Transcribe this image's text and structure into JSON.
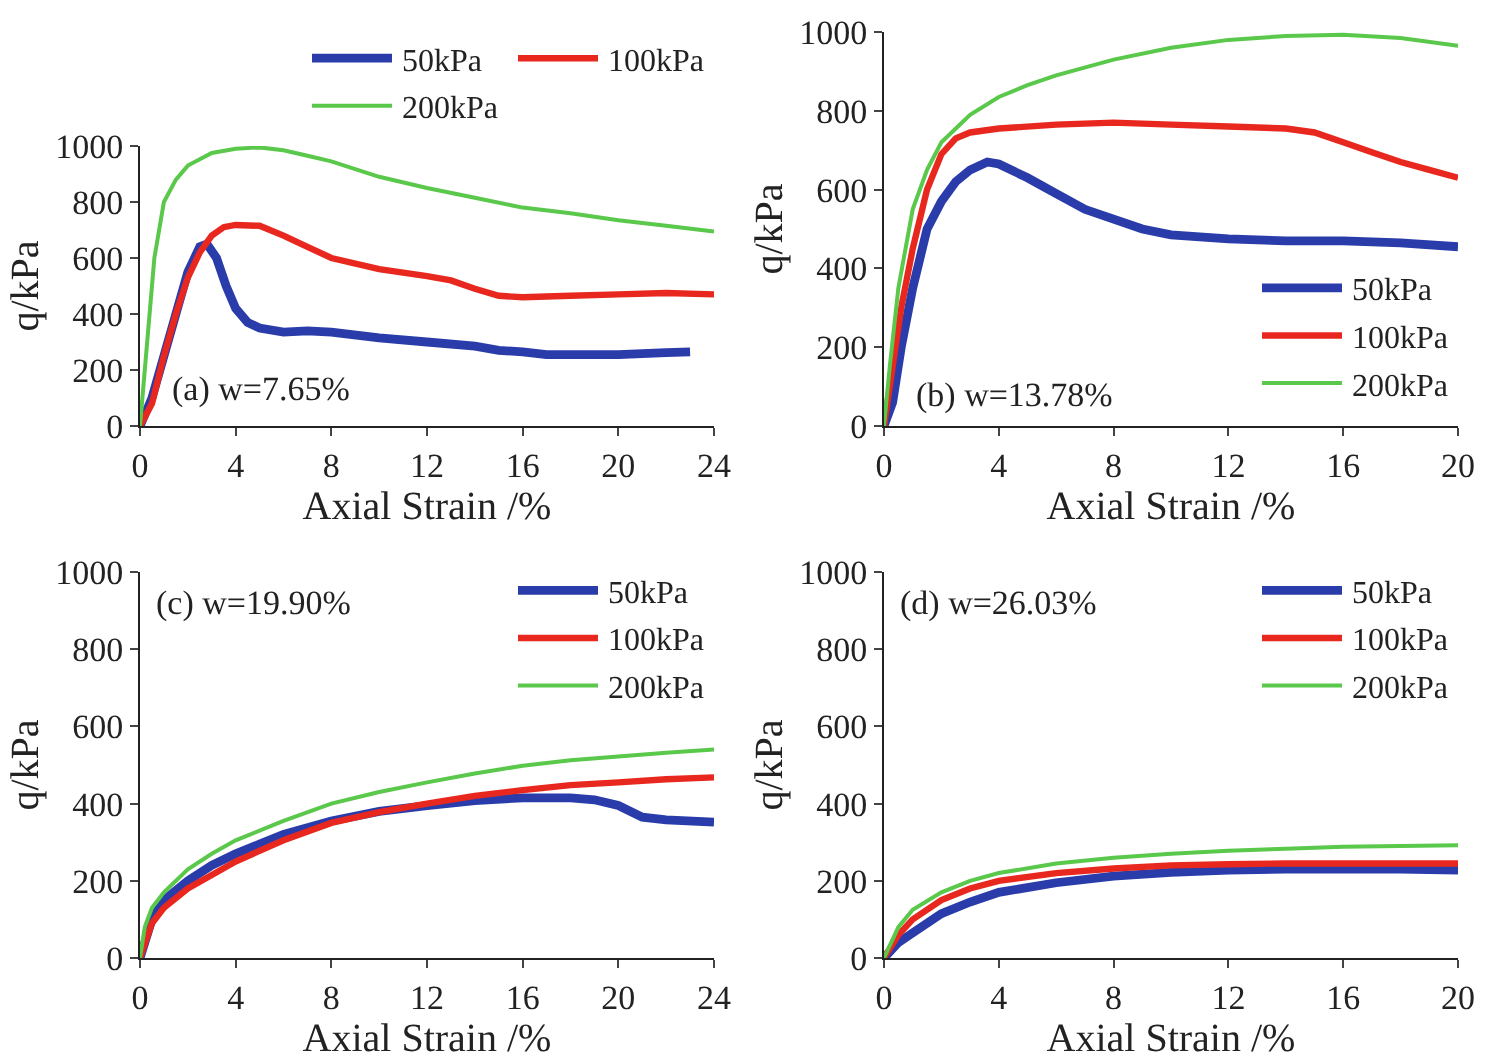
{
  "chart_data": [
    {
      "type": "line",
      "xlabel": "Axial Strain /%",
      "ylabel": "q/kPa",
      "annotations": [
        "(a) w=7.65%"
      ],
      "xlim": [
        0,
        24
      ],
      "xticks": [
        0,
        4,
        8,
        12,
        16,
        20,
        24
      ],
      "ylim": [
        0,
        1000
      ],
      "yticks": [
        0,
        200,
        400,
        600,
        800,
        1000
      ],
      "grid": false,
      "legend": "top",
      "series": [
        {
          "name": "50kPa",
          "color": "#2a3caa",
          "x": [
            0,
            0.5,
            1,
            1.5,
            2,
            2.5,
            2.8,
            3.2,
            3.6,
            4,
            4.5,
            5,
            6,
            7,
            8,
            10,
            12,
            14,
            15,
            16,
            17,
            18,
            20,
            22,
            23
          ],
          "values": [
            0,
            100,
            250,
            400,
            550,
            640,
            650,
            600,
            500,
            420,
            370,
            350,
            335,
            340,
            335,
            315,
            300,
            285,
            270,
            265,
            255,
            255,
            255,
            262,
            265
          ]
        },
        {
          "name": "100kPa",
          "color": "#e8281e",
          "x": [
            0,
            0.5,
            1,
            1.5,
            2,
            2.5,
            3,
            3.5,
            4,
            5,
            6,
            7,
            8,
            10,
            12,
            13,
            14,
            15,
            16,
            18,
            20,
            22,
            24
          ],
          "values": [
            0,
            80,
            250,
            400,
            530,
            620,
            680,
            710,
            718,
            715,
            680,
            640,
            600,
            560,
            535,
            520,
            490,
            465,
            460,
            465,
            470,
            475,
            470
          ]
        },
        {
          "name": "200kPa",
          "color": "#5ac84a",
          "x": [
            0,
            0.3,
            0.6,
            1,
            1.5,
            2,
            3,
            4,
            5,
            6,
            7,
            8,
            10,
            12,
            14,
            16,
            18,
            20,
            22,
            24
          ],
          "values": [
            0,
            300,
            600,
            800,
            880,
            930,
            975,
            990,
            995,
            985,
            965,
            945,
            890,
            850,
            815,
            780,
            760,
            735,
            715,
            695
          ]
        }
      ]
    },
    {
      "type": "line",
      "xlabel": "Axial Strain /%",
      "ylabel": "q/kPa",
      "annotations": [
        "(b) w=13.78%"
      ],
      "xlim": [
        0,
        20
      ],
      "xticks": [
        0,
        4,
        8,
        12,
        16,
        20
      ],
      "ylim": [
        0,
        1000
      ],
      "yticks": [
        0,
        200,
        400,
        600,
        800,
        1000
      ],
      "grid": false,
      "legend": "bottom right",
      "series": [
        {
          "name": "50kPa",
          "color": "#2a3caa",
          "x": [
            0,
            0.3,
            0.6,
            1,
            1.5,
            2,
            2.5,
            3,
            3.6,
            4,
            5,
            6,
            7,
            8,
            9,
            10,
            12,
            14,
            16,
            18,
            20
          ],
          "values": [
            0,
            60,
            200,
            350,
            500,
            570,
            620,
            650,
            670,
            665,
            630,
            590,
            550,
            525,
            500,
            485,
            475,
            470,
            470,
            465,
            455
          ]
        },
        {
          "name": "100kPa",
          "color": "#e8281e",
          "x": [
            0,
            0.3,
            0.6,
            1,
            1.5,
            2,
            2.5,
            3,
            4,
            6,
            8,
            10,
            12,
            14,
            15,
            16,
            17,
            18,
            19,
            20
          ],
          "values": [
            0,
            150,
            300,
            450,
            600,
            690,
            730,
            745,
            755,
            765,
            770,
            765,
            760,
            755,
            745,
            720,
            695,
            670,
            650,
            630
          ]
        },
        {
          "name": "200kPa",
          "color": "#5ac84a",
          "x": [
            0,
            0.2,
            0.5,
            1,
            1.5,
            2,
            3,
            4,
            5,
            6,
            8,
            10,
            12,
            14,
            16,
            18,
            20
          ],
          "values": [
            0,
            150,
            350,
            550,
            650,
            720,
            790,
            835,
            865,
            890,
            930,
            960,
            980,
            990,
            993,
            985,
            965
          ]
        }
      ]
    },
    {
      "type": "line",
      "xlabel": "Axial Strain /%",
      "ylabel": "q/kPa",
      "annotations": [
        "(c) w=19.90%"
      ],
      "xlim": [
        0,
        24
      ],
      "xticks": [
        0,
        4,
        8,
        12,
        16,
        20,
        24
      ],
      "ylim": [
        0,
        1000
      ],
      "yticks": [
        0,
        200,
        400,
        600,
        800,
        1000
      ],
      "grid": false,
      "legend": "top right",
      "series": [
        {
          "name": "50kPa",
          "color": "#2a3caa",
          "x": [
            0,
            0.5,
            1,
            2,
            3,
            4,
            5,
            6,
            8,
            10,
            12,
            14,
            16,
            18,
            19,
            20,
            21,
            22,
            24
          ],
          "values": [
            0,
            100,
            150,
            200,
            240,
            270,
            295,
            320,
            355,
            380,
            395,
            408,
            415,
            415,
            410,
            395,
            365,
            358,
            352
          ]
        },
        {
          "name": "100kPa",
          "color": "#e8281e",
          "x": [
            0,
            0.5,
            1,
            2,
            3,
            4,
            6,
            8,
            10,
            12,
            14,
            16,
            18,
            20,
            22,
            24
          ],
          "values": [
            0,
            90,
            130,
            180,
            215,
            250,
            305,
            350,
            378,
            400,
            420,
            435,
            448,
            455,
            463,
            468
          ]
        },
        {
          "name": "200kPa",
          "color": "#5ac84a",
          "x": [
            0,
            0.2,
            0.5,
            1,
            2,
            3,
            4,
            6,
            8,
            10,
            12,
            14,
            16,
            18,
            20,
            22,
            24
          ],
          "values": [
            0,
            80,
            130,
            170,
            230,
            270,
            305,
            355,
            400,
            430,
            455,
            478,
            498,
            512,
            522,
            532,
            540
          ]
        }
      ]
    },
    {
      "type": "line",
      "xlabel": "Axial Strain /%",
      "ylabel": "q/kPa",
      "annotations": [
        "(d) w=26.03%"
      ],
      "xlim": [
        0,
        20
      ],
      "xticks": [
        0,
        4,
        8,
        12,
        16,
        20
      ],
      "ylim": [
        0,
        1000
      ],
      "yticks": [
        0,
        200,
        400,
        600,
        800,
        1000
      ],
      "grid": false,
      "legend": "top right",
      "series": [
        {
          "name": "50kPa",
          "color": "#2a3caa",
          "x": [
            0,
            0.5,
            1,
            2,
            3,
            4,
            6,
            8,
            10,
            12,
            14,
            16,
            18,
            20
          ],
          "values": [
            0,
            40,
            65,
            115,
            145,
            170,
            195,
            212,
            222,
            228,
            230,
            230,
            230,
            228
          ]
        },
        {
          "name": "100kPa",
          "color": "#e8281e",
          "x": [
            0,
            0.5,
            1,
            2,
            3,
            4,
            6,
            8,
            10,
            12,
            14,
            16,
            18,
            20
          ],
          "values": [
            0,
            60,
            100,
            150,
            180,
            200,
            220,
            232,
            240,
            243,
            245,
            245,
            245,
            245
          ]
        },
        {
          "name": "200kPa",
          "color": "#5ac84a",
          "x": [
            0,
            0.5,
            1,
            2,
            3,
            4,
            6,
            8,
            10,
            12,
            14,
            16,
            18,
            20
          ],
          "values": [
            0,
            80,
            125,
            170,
            200,
            220,
            245,
            260,
            270,
            278,
            283,
            288,
            290,
            292
          ]
        }
      ]
    }
  ]
}
